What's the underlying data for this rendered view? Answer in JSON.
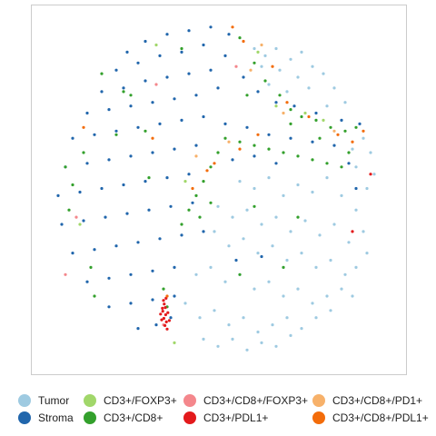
{
  "chart_data": {
    "type": "scatter",
    "title": "",
    "xlabel": "",
    "ylabel": "",
    "grid": false,
    "legend_position": "bottom",
    "series": [
      {
        "name": "Tumor",
        "color": "#9ecae1",
        "points": [
          [
            0.6,
            0.11
          ],
          [
            0.63,
            0.13
          ],
          [
            0.66,
            0.11
          ],
          [
            0.7,
            0.14
          ],
          [
            0.73,
            0.12
          ],
          [
            0.76,
            0.16
          ],
          [
            0.79,
            0.18
          ],
          [
            0.82,
            0.22
          ],
          [
            0.85,
            0.26
          ],
          [
            0.62,
            0.16
          ],
          [
            0.67,
            0.17
          ],
          [
            0.72,
            0.19
          ],
          [
            0.64,
            0.21
          ],
          [
            0.69,
            0.23
          ],
          [
            0.75,
            0.22
          ],
          [
            0.8,
            0.27
          ],
          [
            0.87,
            0.39
          ],
          [
            0.9,
            0.36
          ],
          [
            0.92,
            0.4
          ],
          [
            0.93,
            0.46
          ],
          [
            0.91,
            0.5
          ],
          [
            0.88,
            0.44
          ],
          [
            0.56,
            0.48
          ],
          [
            0.6,
            0.5
          ],
          [
            0.64,
            0.47
          ],
          [
            0.68,
            0.52
          ],
          [
            0.72,
            0.49
          ],
          [
            0.76,
            0.51
          ],
          [
            0.8,
            0.47
          ],
          [
            0.84,
            0.52
          ],
          [
            0.88,
            0.56
          ],
          [
            0.9,
            0.62
          ],
          [
            0.91,
            0.68
          ],
          [
            0.5,
            0.55
          ],
          [
            0.54,
            0.58
          ],
          [
            0.58,
            0.56
          ],
          [
            0.62,
            0.6
          ],
          [
            0.66,
            0.58
          ],
          [
            0.7,
            0.62
          ],
          [
            0.74,
            0.59
          ],
          [
            0.78,
            0.63
          ],
          [
            0.82,
            0.6
          ],
          [
            0.86,
            0.65
          ],
          [
            0.49,
            0.62
          ],
          [
            0.53,
            0.66
          ],
          [
            0.57,
            0.64
          ],
          [
            0.61,
            0.68
          ],
          [
            0.65,
            0.66
          ],
          [
            0.69,
            0.7
          ],
          [
            0.73,
            0.68
          ],
          [
            0.77,
            0.72
          ],
          [
            0.81,
            0.7
          ],
          [
            0.85,
            0.74
          ],
          [
            0.88,
            0.72
          ],
          [
            0.44,
            0.74
          ],
          [
            0.48,
            0.72
          ],
          [
            0.52,
            0.76
          ],
          [
            0.56,
            0.74
          ],
          [
            0.6,
            0.78
          ],
          [
            0.64,
            0.76
          ],
          [
            0.68,
            0.8
          ],
          [
            0.72,
            0.78
          ],
          [
            0.76,
            0.82
          ],
          [
            0.8,
            0.8
          ],
          [
            0.84,
            0.78
          ],
          [
            0.87,
            0.8
          ],
          [
            0.41,
            0.82
          ],
          [
            0.45,
            0.86
          ],
          [
            0.49,
            0.84
          ],
          [
            0.53,
            0.88
          ],
          [
            0.57,
            0.86
          ],
          [
            0.61,
            0.9
          ],
          [
            0.65,
            0.88
          ],
          [
            0.69,
            0.86
          ],
          [
            0.73,
            0.89
          ],
          [
            0.77,
            0.86
          ],
          [
            0.81,
            0.84
          ],
          [
            0.46,
            0.92
          ],
          [
            0.5,
            0.94
          ],
          [
            0.54,
            0.92
          ],
          [
            0.58,
            0.95
          ],
          [
            0.62,
            0.93
          ],
          [
            0.66,
            0.94
          ],
          [
            0.7,
            0.91
          ]
        ]
      },
      {
        "name": "Stroma",
        "color": "#2166ac",
        "points": [
          [
            0.25,
            0.12
          ],
          [
            0.3,
            0.09
          ],
          [
            0.36,
            0.07
          ],
          [
            0.42,
            0.06
          ],
          [
            0.48,
            0.05
          ],
          [
            0.53,
            0.07
          ],
          [
            0.22,
            0.17
          ],
          [
            0.28,
            0.15
          ],
          [
            0.34,
            0.13
          ],
          [
            0.4,
            0.12
          ],
          [
            0.46,
            0.1
          ],
          [
            0.52,
            0.13
          ],
          [
            0.57,
            0.19
          ],
          [
            0.61,
            0.23
          ],
          [
            0.66,
            0.26
          ],
          [
            0.71,
            0.27
          ],
          [
            0.77,
            0.29
          ],
          [
            0.84,
            0.31
          ],
          [
            0.89,
            0.32
          ],
          [
            0.18,
            0.23
          ],
          [
            0.24,
            0.22
          ],
          [
            0.3,
            0.2
          ],
          [
            0.36,
            0.19
          ],
          [
            0.42,
            0.18
          ],
          [
            0.48,
            0.17
          ],
          [
            0.14,
            0.29
          ],
          [
            0.2,
            0.28
          ],
          [
            0.26,
            0.27
          ],
          [
            0.32,
            0.26
          ],
          [
            0.38,
            0.25
          ],
          [
            0.44,
            0.24
          ],
          [
            0.5,
            0.22
          ],
          [
            0.52,
            0.32
          ],
          [
            0.58,
            0.33
          ],
          [
            0.64,
            0.35
          ],
          [
            0.7,
            0.36
          ],
          [
            0.76,
            0.37
          ],
          [
            0.82,
            0.38
          ],
          [
            0.86,
            0.43
          ],
          [
            0.88,
            0.5
          ],
          [
            0.1,
            0.36
          ],
          [
            0.16,
            0.35
          ],
          [
            0.22,
            0.34
          ],
          [
            0.28,
            0.33
          ],
          [
            0.34,
            0.32
          ],
          [
            0.4,
            0.31
          ],
          [
            0.46,
            0.3
          ],
          [
            0.54,
            0.42
          ],
          [
            0.6,
            0.41
          ],
          [
            0.66,
            0.43
          ],
          [
            0.08,
            0.44
          ],
          [
            0.14,
            0.43
          ],
          [
            0.2,
            0.42
          ],
          [
            0.26,
            0.41
          ],
          [
            0.32,
            0.4
          ],
          [
            0.38,
            0.39
          ],
          [
            0.44,
            0.38
          ],
          [
            0.06,
            0.52
          ],
          [
            0.12,
            0.51
          ],
          [
            0.18,
            0.5
          ],
          [
            0.24,
            0.49
          ],
          [
            0.3,
            0.48
          ],
          [
            0.36,
            0.47
          ],
          [
            0.42,
            0.46
          ],
          [
            0.07,
            0.6
          ],
          [
            0.13,
            0.59
          ],
          [
            0.19,
            0.58
          ],
          [
            0.25,
            0.57
          ],
          [
            0.31,
            0.56
          ],
          [
            0.37,
            0.55
          ],
          [
            0.43,
            0.54
          ],
          [
            0.1,
            0.68
          ],
          [
            0.16,
            0.67
          ],
          [
            0.22,
            0.66
          ],
          [
            0.28,
            0.65
          ],
          [
            0.34,
            0.64
          ],
          [
            0.4,
            0.63
          ],
          [
            0.46,
            0.62
          ],
          [
            0.14,
            0.76
          ],
          [
            0.2,
            0.75
          ],
          [
            0.26,
            0.74
          ],
          [
            0.32,
            0.73
          ],
          [
            0.38,
            0.72
          ],
          [
            0.55,
            0.7
          ],
          [
            0.62,
            0.69
          ],
          [
            0.2,
            0.83
          ],
          [
            0.26,
            0.82
          ],
          [
            0.32,
            0.81
          ],
          [
            0.38,
            0.8
          ],
          [
            0.28,
            0.89
          ],
          [
            0.33,
            0.88
          ],
          [
            0.37,
            0.86
          ]
        ]
      },
      {
        "name": "CD3+/FOXP3+",
        "color": "#a1d76a",
        "points": [
          [
            0.33,
            0.1
          ],
          [
            0.61,
            0.12
          ],
          [
            0.66,
            0.27
          ],
          [
            0.74,
            0.29
          ],
          [
            0.41,
            0.48
          ],
          [
            0.12,
            0.6
          ],
          [
            0.38,
            0.93
          ],
          [
            0.79,
            0.31
          ]
        ]
      },
      {
        "name": "CD3+/CD8+",
        "color": "#33a02c",
        "points": [
          [
            0.4,
            0.11
          ],
          [
            0.56,
            0.08
          ],
          [
            0.6,
            0.15
          ],
          [
            0.63,
            0.2
          ],
          [
            0.67,
            0.24
          ],
          [
            0.7,
            0.28
          ],
          [
            0.73,
            0.3
          ],
          [
            0.77,
            0.31
          ],
          [
            0.81,
            0.33
          ],
          [
            0.85,
            0.34
          ],
          [
            0.88,
            0.33
          ],
          [
            0.18,
            0.18
          ],
          [
            0.24,
            0.23
          ],
          [
            0.52,
            0.36
          ],
          [
            0.56,
            0.37
          ],
          [
            0.6,
            0.38
          ],
          [
            0.64,
            0.39
          ],
          [
            0.68,
            0.4
          ],
          [
            0.72,
            0.41
          ],
          [
            0.76,
            0.42
          ],
          [
            0.8,
            0.43
          ],
          [
            0.84,
            0.44
          ],
          [
            0.5,
            0.4
          ],
          [
            0.48,
            0.44
          ],
          [
            0.46,
            0.48
          ],
          [
            0.44,
            0.52
          ],
          [
            0.42,
            0.56
          ],
          [
            0.45,
            0.58
          ],
          [
            0.48,
            0.54
          ],
          [
            0.4,
            0.6
          ],
          [
            0.08,
            0.44
          ],
          [
            0.1,
            0.49
          ],
          [
            0.13,
            0.4
          ],
          [
            0.09,
            0.56
          ],
          [
            0.15,
            0.72
          ],
          [
            0.16,
            0.8
          ],
          [
            0.35,
            0.78
          ],
          [
            0.36,
            0.83
          ],
          [
            0.3,
            0.34
          ],
          [
            0.26,
            0.24
          ],
          [
            0.58,
            0.24
          ],
          [
            0.7,
            0.32
          ],
          [
            0.78,
            0.36
          ],
          [
            0.86,
            0.4
          ],
          [
            0.56,
            0.74
          ],
          [
            0.68,
            0.72
          ],
          [
            0.6,
            0.55
          ],
          [
            0.72,
            0.58
          ],
          [
            0.31,
            0.47
          ],
          [
            0.22,
            0.35
          ]
        ]
      },
      {
        "name": "CD3+/CD8+/FOXP3+",
        "color": "#f4878c",
        "points": [
          [
            0.11,
            0.58
          ],
          [
            0.08,
            0.74
          ],
          [
            0.33,
            0.21
          ],
          [
            0.55,
            0.16
          ],
          [
            0.35,
            0.88
          ]
        ]
      },
      {
        "name": "CD3+/PDL1+",
        "color": "#e31a1c",
        "points": [
          [
            0.35,
            0.812
          ],
          [
            0.352,
            0.822
          ],
          [
            0.355,
            0.832
          ],
          [
            0.348,
            0.842
          ],
          [
            0.356,
            0.852
          ],
          [
            0.351,
            0.862
          ],
          [
            0.358,
            0.872
          ],
          [
            0.354,
            0.882
          ],
          [
            0.36,
            0.892
          ],
          [
            0.347,
            0.834
          ],
          [
            0.362,
            0.846
          ],
          [
            0.345,
            0.866
          ],
          [
            0.357,
            0.806
          ],
          [
            0.342,
            0.85
          ],
          [
            0.366,
            0.868
          ],
          [
            0.87,
            0.62
          ],
          [
            0.92,
            0.46
          ]
        ]
      },
      {
        "name": "CD3+/CD8+/PD1+",
        "color": "#f7b16a",
        "points": [
          [
            0.59,
            0.17
          ],
          [
            0.62,
            0.1
          ],
          [
            0.68,
            0.29
          ],
          [
            0.82,
            0.34
          ],
          [
            0.53,
            0.37
          ],
          [
            0.44,
            0.41
          ]
        ]
      },
      {
        "name": "CD3+/CD8+/PDL1+",
        "color": "#f36c0a",
        "points": [
          [
            0.57,
            0.09
          ],
          [
            0.65,
            0.16
          ],
          [
            0.69,
            0.26
          ],
          [
            0.75,
            0.3
          ],
          [
            0.83,
            0.35
          ],
          [
            0.87,
            0.37
          ],
          [
            0.54,
            0.05
          ],
          [
            0.61,
            0.35
          ],
          [
            0.49,
            0.43
          ],
          [
            0.47,
            0.45
          ],
          [
            0.43,
            0.5
          ],
          [
            0.13,
            0.33
          ],
          [
            0.32,
            0.36
          ],
          [
            0.36,
            0.8
          ],
          [
            0.56,
            0.39
          ],
          [
            0.9,
            0.34
          ]
        ]
      }
    ]
  }
}
